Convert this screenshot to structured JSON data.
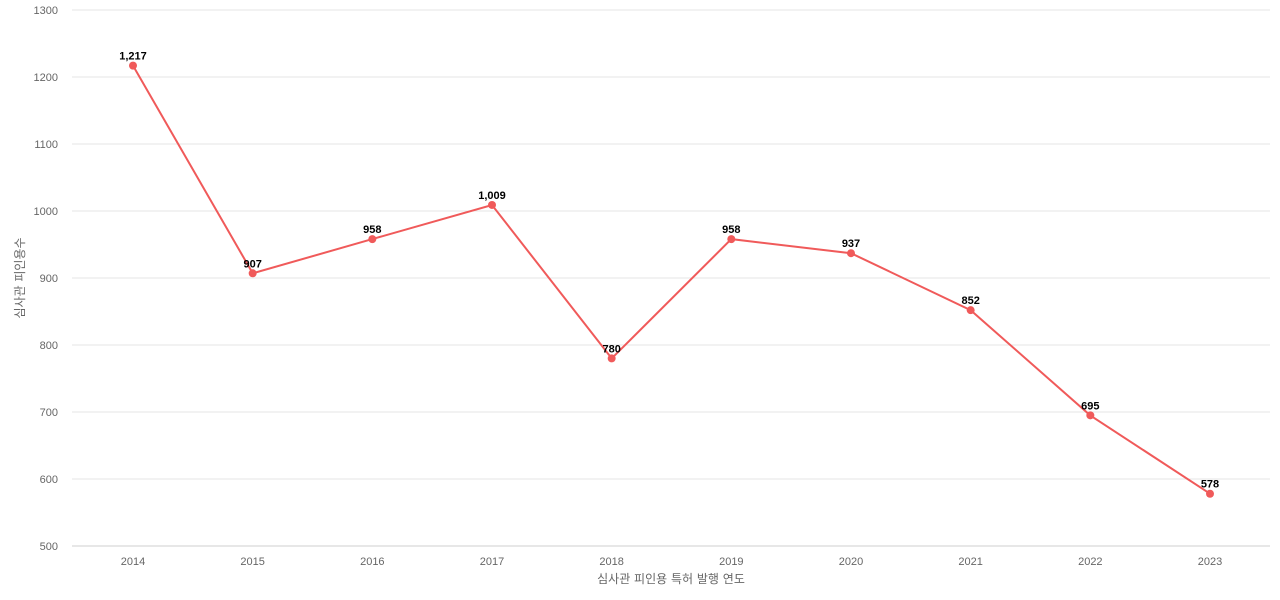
{
  "chart_data": {
    "type": "line",
    "xlabel": "심사관 피인용 특허 발행 연도",
    "ylabel": "심사관 피인용수",
    "ylim": [
      500,
      1300
    ],
    "y_ticks": [
      500,
      600,
      700,
      800,
      900,
      1000,
      1100,
      1200,
      1300
    ],
    "grid": true,
    "categories": [
      "2014",
      "2015",
      "2016",
      "2017",
      "2018",
      "2019",
      "2020",
      "2021",
      "2022",
      "2023"
    ],
    "series": [
      {
        "values": [
          1217,
          907,
          958,
          1009,
          780,
          958,
          937,
          852,
          695,
          578
        ],
        "data_labels": [
          "1,217",
          "907",
          "958",
          "1,009",
          "780",
          "958",
          "937",
          "852",
          "695",
          "578"
        ],
        "color": "#f05a5a"
      }
    ]
  }
}
